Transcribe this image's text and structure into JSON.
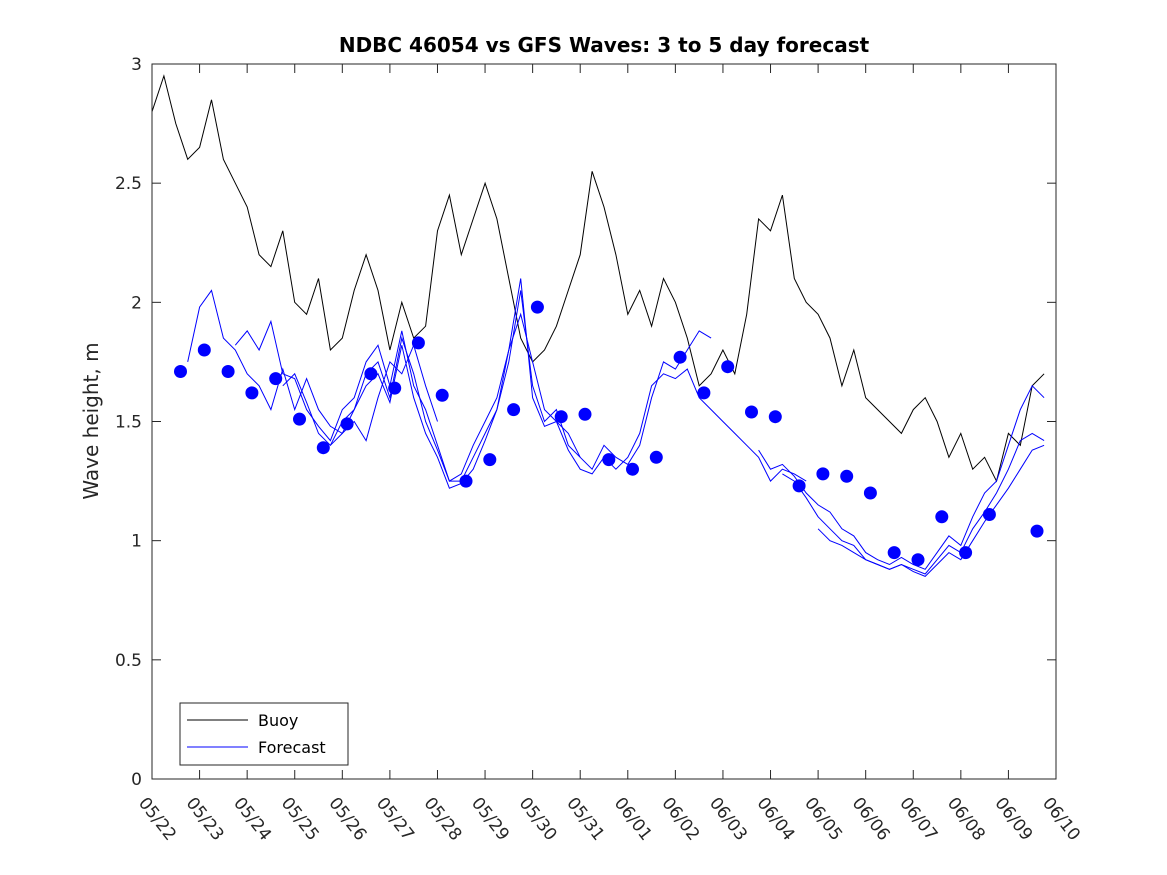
{
  "chart_data": {
    "type": "line",
    "title": "NDBC 46054 vs GFS Waves: 3 to 5 day forecast",
    "xlabel": "",
    "ylabel": "Wave height, m",
    "xlim": [
      "05/22",
      "06/10"
    ],
    "ylim": [
      0,
      3
    ],
    "x_tick_labels": [
      "05/22",
      "05/23",
      "05/24",
      "05/25",
      "05/26",
      "05/27",
      "05/28",
      "05/29",
      "05/30",
      "05/31",
      "06/01",
      "06/02",
      "06/03",
      "06/04",
      "06/05",
      "06/06",
      "06/07",
      "06/08",
      "06/09",
      "06/10"
    ],
    "y_ticks": [
      0,
      0.5,
      1,
      1.5,
      2,
      2.5,
      3
    ],
    "y_tick_labels": [
      "0",
      "0.5",
      "1",
      "1.5",
      "2",
      "2.5",
      "3"
    ],
    "grid": false,
    "legend": {
      "placement": "bottom-left",
      "entries": [
        "Buoy",
        "Forecast"
      ]
    },
    "colors": {
      "buoy": "#000000",
      "forecast": "#0000ff",
      "axis": "#262626"
    },
    "buoy": {
      "name": "Buoy",
      "points": [
        [
          0.0,
          2.8
        ],
        [
          0.25,
          2.95
        ],
        [
          0.5,
          2.75
        ],
        [
          0.75,
          2.6
        ],
        [
          1.0,
          2.65
        ],
        [
          1.25,
          2.85
        ],
        [
          1.5,
          2.6
        ],
        [
          1.75,
          2.5
        ],
        [
          2.0,
          2.4
        ],
        [
          2.25,
          2.2
        ],
        [
          2.5,
          2.15
        ],
        [
          2.75,
          2.3
        ],
        [
          3.0,
          2.0
        ],
        [
          3.25,
          1.95
        ],
        [
          3.5,
          2.1
        ],
        [
          3.75,
          1.8
        ],
        [
          4.0,
          1.85
        ],
        [
          4.25,
          2.05
        ],
        [
          4.5,
          2.2
        ],
        [
          4.75,
          2.05
        ],
        [
          5.0,
          1.8
        ],
        [
          5.25,
          2.0
        ],
        [
          5.5,
          1.85
        ],
        [
          5.75,
          1.9
        ],
        [
          6.0,
          2.3
        ],
        [
          6.25,
          2.45
        ],
        [
          6.5,
          2.2
        ],
        [
          6.75,
          2.35
        ],
        [
          7.0,
          2.5
        ],
        [
          7.25,
          2.35
        ],
        [
          7.5,
          2.1
        ],
        [
          7.75,
          1.85
        ],
        [
          8.0,
          1.75
        ],
        [
          8.25,
          1.8
        ],
        [
          8.5,
          1.9
        ],
        [
          8.75,
          2.05
        ],
        [
          9.0,
          2.2
        ],
        [
          9.25,
          2.55
        ],
        [
          9.5,
          2.4
        ],
        [
          9.75,
          2.2
        ],
        [
          10.0,
          1.95
        ],
        [
          10.25,
          2.05
        ],
        [
          10.5,
          1.9
        ],
        [
          10.75,
          2.1
        ],
        [
          11.0,
          2.0
        ],
        [
          11.25,
          1.85
        ],
        [
          11.5,
          1.65
        ],
        [
          11.75,
          1.7
        ],
        [
          12.0,
          1.8
        ],
        [
          12.25,
          1.7
        ],
        [
          12.5,
          1.95
        ],
        [
          12.75,
          2.35
        ],
        [
          13.0,
          2.3
        ],
        [
          13.25,
          2.45
        ],
        [
          13.5,
          2.1
        ],
        [
          13.75,
          2.0
        ],
        [
          14.0,
          1.95
        ],
        [
          14.25,
          1.85
        ],
        [
          14.5,
          1.65
        ],
        [
          14.75,
          1.8
        ],
        [
          15.0,
          1.6
        ],
        [
          15.25,
          1.55
        ],
        [
          15.5,
          1.5
        ],
        [
          15.75,
          1.45
        ],
        [
          16.0,
          1.55
        ],
        [
          16.25,
          1.6
        ],
        [
          16.5,
          1.5
        ],
        [
          16.75,
          1.35
        ],
        [
          17.0,
          1.45
        ],
        [
          17.25,
          1.3
        ],
        [
          17.5,
          1.35
        ],
        [
          17.75,
          1.25
        ],
        [
          18.0,
          1.45
        ],
        [
          18.25,
          1.4
        ],
        [
          18.5,
          1.65
        ],
        [
          18.75,
          1.7
        ]
      ]
    },
    "forecast_lines": [
      {
        "name": "Forecast",
        "points": [
          [
            0.75,
            1.75
          ],
          [
            1.0,
            1.98
          ],
          [
            1.25,
            2.05
          ],
          [
            1.5,
            1.85
          ],
          [
            1.75,
            1.8
          ],
          [
            2.0,
            1.7
          ],
          [
            2.25,
            1.65
          ],
          [
            2.5,
            1.55
          ],
          [
            2.75,
            1.72
          ],
          [
            3.0,
            1.55
          ],
          [
            3.25,
            1.68
          ],
          [
            3.5,
            1.55
          ],
          [
            3.75,
            1.48
          ],
          [
            4.0,
            1.45
          ],
          [
            4.25,
            1.5
          ],
          [
            4.5,
            1.42
          ],
          [
            4.75,
            1.6
          ],
          [
            5.0,
            1.75
          ],
          [
            5.25,
            1.7
          ],
          [
            5.5,
            1.82
          ],
          [
            5.75,
            1.65
          ],
          [
            6.0,
            1.5
          ]
        ]
      },
      {
        "name": "Forecast",
        "points": [
          [
            1.75,
            1.82
          ],
          [
            2.0,
            1.88
          ],
          [
            2.25,
            1.8
          ],
          [
            2.5,
            1.92
          ],
          [
            2.75,
            1.7
          ],
          [
            3.0,
            1.68
          ],
          [
            3.25,
            1.55
          ],
          [
            3.5,
            1.48
          ],
          [
            3.75,
            1.42
          ],
          [
            4.0,
            1.55
          ],
          [
            4.25,
            1.6
          ],
          [
            4.5,
            1.75
          ],
          [
            4.75,
            1.82
          ],
          [
            5.0,
            1.65
          ],
          [
            5.25,
            1.88
          ],
          [
            5.5,
            1.65
          ],
          [
            5.75,
            1.55
          ],
          [
            6.0,
            1.4
          ],
          [
            6.25,
            1.25
          ],
          [
            6.5,
            1.28
          ],
          [
            6.75,
            1.4
          ],
          [
            7.0,
            1.5
          ],
          [
            7.25,
            1.6
          ],
          [
            7.5,
            1.8
          ],
          [
            7.75,
            1.95
          ],
          [
            8.0,
            1.75
          ],
          [
            8.25,
            1.55
          ],
          [
            8.5,
            1.5
          ],
          [
            8.75,
            1.45
          ],
          [
            9.0,
            1.35
          ]
        ]
      },
      {
        "name": "Forecast",
        "points": [
          [
            2.75,
            1.65
          ],
          [
            3.0,
            1.7
          ],
          [
            3.25,
            1.58
          ],
          [
            3.5,
            1.45
          ],
          [
            3.75,
            1.4
          ],
          [
            4.0,
            1.5
          ],
          [
            4.25,
            1.55
          ],
          [
            4.5,
            1.7
          ],
          [
            4.75,
            1.75
          ],
          [
            5.0,
            1.6
          ],
          [
            5.25,
            1.85
          ],
          [
            5.5,
            1.7
          ],
          [
            5.75,
            1.5
          ],
          [
            6.0,
            1.38
          ],
          [
            6.25,
            1.25
          ],
          [
            6.5,
            1.25
          ],
          [
            6.75,
            1.35
          ],
          [
            7.0,
            1.45
          ],
          [
            7.25,
            1.55
          ],
          [
            7.5,
            1.75
          ],
          [
            7.75,
            2.05
          ],
          [
            8.0,
            1.65
          ],
          [
            8.25,
            1.5
          ],
          [
            8.5,
            1.55
          ],
          [
            8.75,
            1.4
          ],
          [
            9.0,
            1.35
          ],
          [
            9.25,
            1.3
          ],
          [
            9.5,
            1.4
          ],
          [
            9.75,
            1.35
          ],
          [
            10.0,
            1.32
          ],
          [
            10.25,
            1.4
          ],
          [
            10.5,
            1.6
          ],
          [
            10.75,
            1.75
          ],
          [
            11.0,
            1.72
          ],
          [
            11.25,
            1.8
          ],
          [
            11.5,
            1.88
          ],
          [
            11.75,
            1.85
          ]
        ]
      },
      {
        "name": "Forecast",
        "points": [
          [
            3.75,
            1.4
          ],
          [
            4.0,
            1.45
          ],
          [
            4.25,
            1.55
          ],
          [
            4.5,
            1.65
          ],
          [
            4.75,
            1.7
          ],
          [
            5.0,
            1.58
          ],
          [
            5.25,
            1.82
          ],
          [
            5.5,
            1.6
          ],
          [
            5.75,
            1.45
          ],
          [
            6.0,
            1.35
          ],
          [
            6.25,
            1.22
          ],
          [
            6.5,
            1.24
          ],
          [
            6.75,
            1.3
          ],
          [
            7.0,
            1.42
          ],
          [
            7.25,
            1.55
          ],
          [
            7.5,
            1.8
          ],
          [
            7.75,
            2.1
          ],
          [
            8.0,
            1.6
          ],
          [
            8.25,
            1.48
          ],
          [
            8.5,
            1.5
          ],
          [
            8.75,
            1.38
          ],
          [
            9.0,
            1.3
          ],
          [
            9.25,
            1.28
          ],
          [
            9.5,
            1.35
          ],
          [
            9.75,
            1.3
          ],
          [
            10.0,
            1.35
          ],
          [
            10.25,
            1.45
          ],
          [
            10.5,
            1.65
          ],
          [
            10.75,
            1.7
          ],
          [
            11.0,
            1.68
          ],
          [
            11.25,
            1.72
          ],
          [
            11.5,
            1.6
          ],
          [
            11.75,
            1.55
          ],
          [
            12.0,
            1.5
          ],
          [
            12.25,
            1.45
          ],
          [
            12.5,
            1.4
          ],
          [
            12.75,
            1.35
          ],
          [
            13.0,
            1.25
          ],
          [
            13.25,
            1.3
          ],
          [
            13.5,
            1.28
          ],
          [
            13.75,
            1.25
          ]
        ]
      },
      {
        "name": "Forecast",
        "points": [
          [
            12.75,
            1.38
          ],
          [
            13.0,
            1.3
          ],
          [
            13.25,
            1.32
          ],
          [
            13.5,
            1.27
          ],
          [
            13.75,
            1.2
          ],
          [
            14.0,
            1.15
          ],
          [
            14.25,
            1.12
          ],
          [
            14.5,
            1.05
          ],
          [
            14.75,
            1.02
          ],
          [
            15.0,
            0.95
          ],
          [
            15.25,
            0.92
          ],
          [
            15.5,
            0.9
          ],
          [
            15.75,
            0.93
          ],
          [
            16.0,
            0.9
          ],
          [
            16.25,
            0.88
          ],
          [
            16.5,
            0.95
          ],
          [
            16.75,
            1.02
          ],
          [
            17.0,
            0.98
          ],
          [
            17.25,
            1.1
          ],
          [
            17.5,
            1.2
          ],
          [
            17.75,
            1.25
          ],
          [
            18.0,
            1.4
          ],
          [
            18.25,
            1.55
          ],
          [
            18.5,
            1.65
          ],
          [
            18.75,
            1.6
          ]
        ]
      },
      {
        "name": "Forecast",
        "points": [
          [
            13.25,
            1.28
          ],
          [
            13.5,
            1.25
          ],
          [
            13.75,
            1.18
          ],
          [
            14.0,
            1.1
          ],
          [
            14.25,
            1.05
          ],
          [
            14.5,
            1.0
          ],
          [
            14.75,
            0.98
          ],
          [
            15.0,
            0.92
          ],
          [
            15.25,
            0.9
          ],
          [
            15.5,
            0.88
          ],
          [
            15.75,
            0.9
          ],
          [
            16.0,
            0.88
          ],
          [
            16.25,
            0.86
          ],
          [
            16.5,
            0.92
          ],
          [
            16.75,
            0.98
          ],
          [
            17.0,
            0.95
          ],
          [
            17.25,
            1.05
          ],
          [
            17.5,
            1.12
          ],
          [
            17.75,
            1.2
          ],
          [
            18.0,
            1.3
          ],
          [
            18.25,
            1.42
          ],
          [
            18.5,
            1.45
          ],
          [
            18.75,
            1.42
          ]
        ]
      },
      {
        "name": "Forecast",
        "points": [
          [
            14.0,
            1.05
          ],
          [
            14.25,
            1.0
          ],
          [
            14.5,
            0.98
          ],
          [
            14.75,
            0.95
          ],
          [
            15.0,
            0.92
          ],
          [
            15.25,
            0.9
          ],
          [
            15.5,
            0.88
          ],
          [
            15.75,
            0.9
          ],
          [
            16.0,
            0.87
          ],
          [
            16.25,
            0.85
          ],
          [
            16.5,
            0.9
          ],
          [
            16.75,
            0.95
          ],
          [
            17.0,
            0.92
          ],
          [
            17.25,
            1.0
          ],
          [
            17.5,
            1.08
          ],
          [
            17.75,
            1.15
          ],
          [
            18.0,
            1.22
          ],
          [
            18.25,
            1.3
          ],
          [
            18.5,
            1.38
          ],
          [
            18.75,
            1.4
          ]
        ]
      }
    ],
    "forecast_points": {
      "name": "Forecast",
      "points": [
        [
          0.6,
          1.71
        ],
        [
          1.1,
          1.8
        ],
        [
          1.6,
          1.71
        ],
        [
          2.1,
          1.62
        ],
        [
          2.6,
          1.68
        ],
        [
          3.1,
          1.51
        ],
        [
          3.6,
          1.39
        ],
        [
          4.1,
          1.49
        ],
        [
          4.6,
          1.7
        ],
        [
          5.1,
          1.64
        ],
        [
          5.6,
          1.83
        ],
        [
          6.1,
          1.61
        ],
        [
          6.6,
          1.25
        ],
        [
          7.1,
          1.34
        ],
        [
          7.6,
          1.55
        ],
        [
          8.1,
          1.98
        ],
        [
          8.6,
          1.52
        ],
        [
          9.1,
          1.53
        ],
        [
          9.6,
          1.34
        ],
        [
          10.1,
          1.3
        ],
        [
          10.6,
          1.35
        ],
        [
          11.1,
          1.77
        ],
        [
          11.6,
          1.62
        ],
        [
          12.1,
          1.73
        ],
        [
          12.6,
          1.54
        ],
        [
          13.1,
          1.52
        ],
        [
          13.6,
          1.23
        ],
        [
          14.1,
          1.28
        ],
        [
          14.6,
          1.27
        ],
        [
          15.1,
          1.2
        ],
        [
          15.6,
          0.95
        ],
        [
          16.1,
          0.92
        ],
        [
          16.6,
          1.1
        ],
        [
          17.1,
          0.95
        ],
        [
          17.6,
          1.11
        ],
        [
          18.6,
          1.04
        ]
      ]
    }
  }
}
